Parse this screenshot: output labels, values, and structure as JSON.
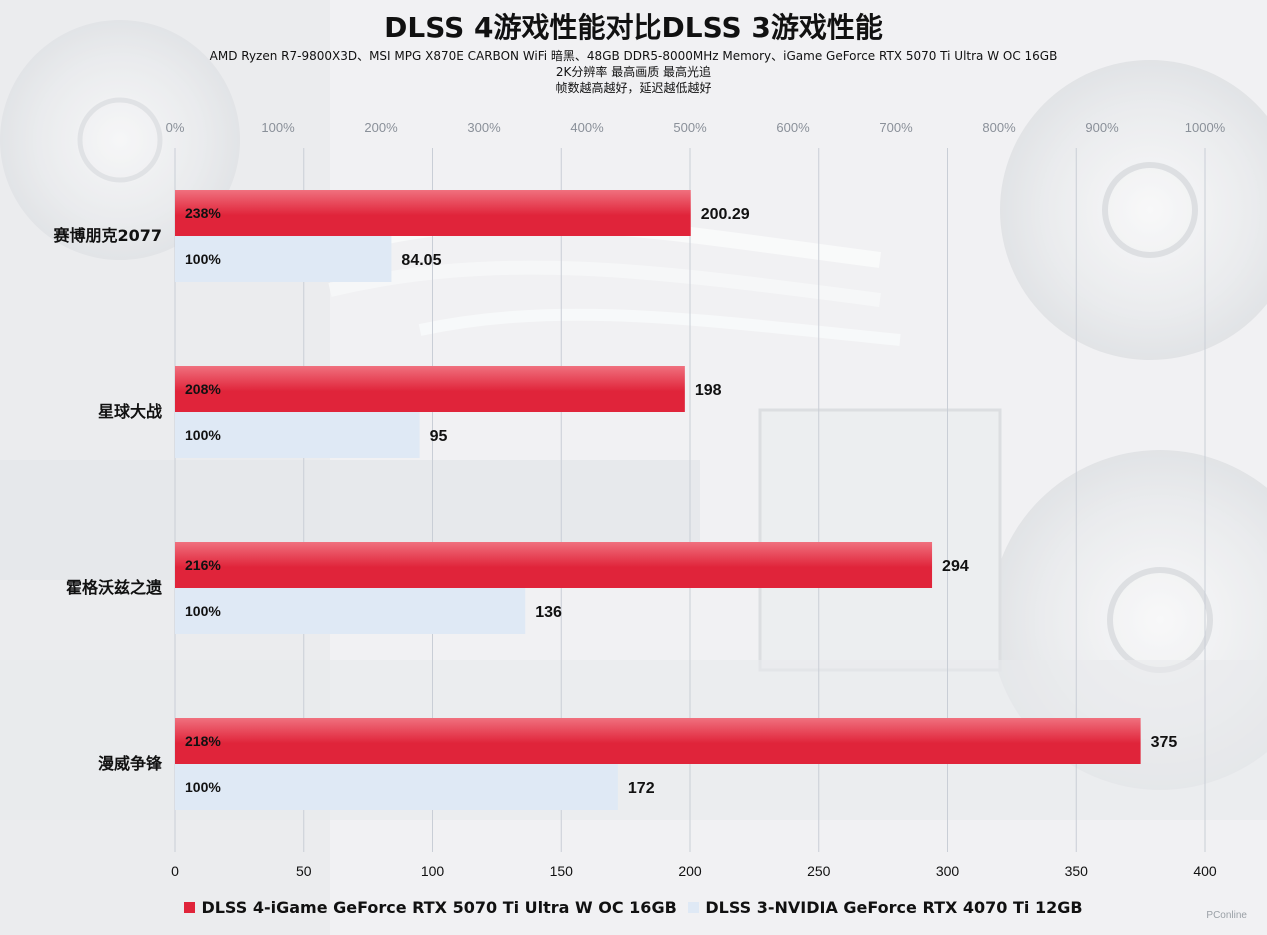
{
  "title": "DLSS 4游戏性能对比DLSS 3游戏性能",
  "subtitle_lines": [
    "AMD Ryzen R7-9800X3D、MSI MPG X870E CARBON WiFi 暗黑、48GB DDR5-8000MHz Memory、iGame GeForce RTX 5070 Ti Ultra W OC 16GB",
    "2K分辨率 最高画质 最高光追",
    "帧数越高越好，延迟越低越好"
  ],
  "watermark": "PConline",
  "colors": {
    "series_a": "#e0243a",
    "series_a_light": "#f0707e",
    "series_b": "#dfe9f5",
    "grid": "#c9ced6",
    "text": "#111111"
  },
  "chart_data": {
    "type": "bar",
    "orientation": "horizontal",
    "categories": [
      "赛博朋克2077",
      "星球大战",
      "霍格沃兹之遗",
      "漫威争锋"
    ],
    "series": [
      {
        "name": "DLSS 4-iGame GeForce RTX 5070 Ti Ultra W OC 16GB",
        "values": [
          200.29,
          198,
          294,
          375
        ],
        "value_labels": [
          "200.29",
          "198",
          "294",
          "375"
        ],
        "percent_labels": [
          "238%",
          "208%",
          "216%",
          "218%"
        ]
      },
      {
        "name": "DLSS 3-NVIDIA GeForce RTX 4070 Ti 12GB",
        "values": [
          84.05,
          95,
          136,
          172
        ],
        "value_labels": [
          "84.05",
          "95",
          "136",
          "172"
        ],
        "percent_labels": [
          "100%",
          "100%",
          "100%",
          "100%"
        ]
      }
    ],
    "x_bottom": {
      "ticks": [
        "0",
        "50",
        "100",
        "150",
        "200",
        "250",
        "300",
        "350",
        "400"
      ],
      "range": [
        0,
        400
      ]
    },
    "x_top": {
      "ticks": [
        "0%",
        "100%",
        "200%",
        "300%",
        "400%",
        "500%",
        "600%",
        "700%",
        "800%",
        "900%",
        "1000%"
      ],
      "range": [
        0,
        1000
      ]
    },
    "grid": true,
    "legend_position": "bottom"
  }
}
